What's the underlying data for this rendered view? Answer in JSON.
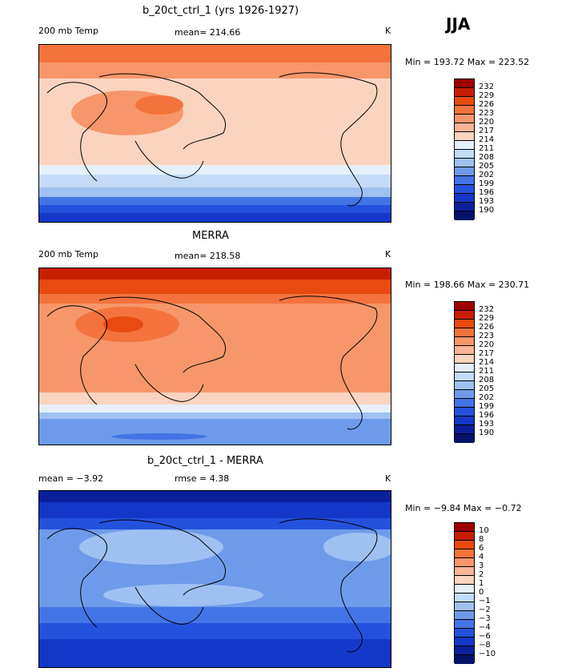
{
  "season": "JJA",
  "panels": [
    {
      "title": "b_20ct_ctrl_1 (yrs 1926-1927)",
      "left_label": "200 mb Temp",
      "mid_label": "mean= 214.66",
      "right_label": "K",
      "minmax": "Min = 193.72 Max = 223.52",
      "colorbar_labels": [
        "232",
        "229",
        "226",
        "223",
        "220",
        "217",
        "214",
        "211",
        "208",
        "205",
        "202",
        "199",
        "196",
        "193",
        "190"
      ]
    },
    {
      "title": "MERRA",
      "left_label": "200 mb Temp",
      "mid_label": "mean= 218.58",
      "right_label": "K",
      "minmax": "Min = 198.66 Max = 230.71",
      "colorbar_labels": [
        "232",
        "229",
        "226",
        "223",
        "220",
        "217",
        "214",
        "211",
        "208",
        "205",
        "202",
        "199",
        "196",
        "193",
        "190"
      ]
    },
    {
      "title": "b_20ct_ctrl_1 - MERRA",
      "left_label": "mean =  −3.92",
      "mid_label": "rmse =   4.38",
      "right_label": "K",
      "minmax": "Min =  −9.84 Max =  −0.72",
      "colorbar_labels": [
        "10",
        "8",
        "6",
        "4",
        "3",
        "2",
        "1",
        "0",
        "−1",
        "−2",
        "−3",
        "−4",
        "−6",
        "−8",
        "−10"
      ]
    }
  ],
  "colors": {
    "scale": [
      "#9e0000",
      "#c81e00",
      "#e84a10",
      "#f4733c",
      "#f7966a",
      "#f9b596",
      "#fbd4bf",
      "#e6f0fb",
      "#c3dbf7",
      "#9ec1f2",
      "#6e9be9",
      "#4374e6",
      "#2451dc",
      "#1338c8",
      "#0a1f9a",
      "#041268"
    ]
  }
}
